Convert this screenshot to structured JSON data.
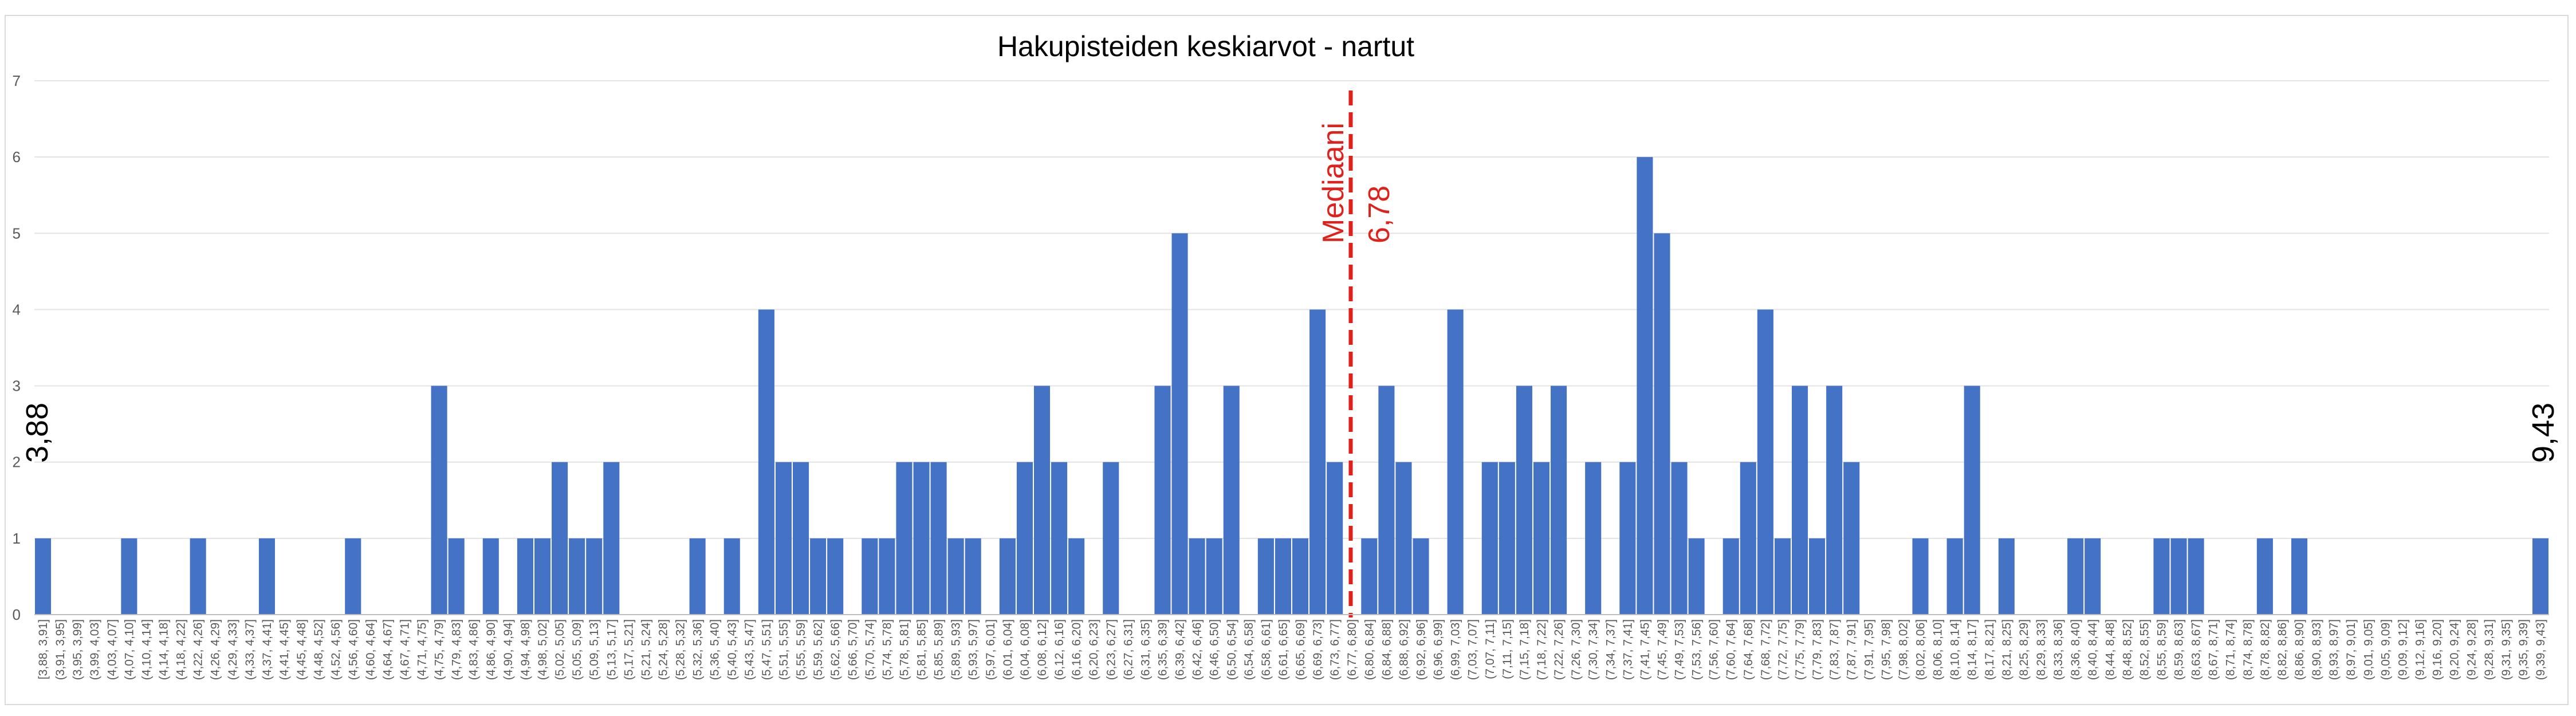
{
  "chart_data": {
    "type": "bar",
    "title": "Hakupisteiden keskiarvot - nartut",
    "xlabel": "",
    "ylabel": "",
    "ylim": [
      0,
      7
    ],
    "yticks": [
      "0",
      "1",
      "2",
      "3",
      "4",
      "5",
      "6",
      "7"
    ],
    "grid": true,
    "legend": "none",
    "bar_color": "#4472c4",
    "categories": [
      "[3,88, 3,91]",
      "(3,91, 3,95]",
      "(3,95, 3,99]",
      "(3,99, 4,03]",
      "(4,03, 4,07]",
      "(4,07, 4,10]",
      "(4,10, 4,14]",
      "(4,14, 4,18]",
      "(4,18, 4,22]",
      "(4,22, 4,26]",
      "(4,26, 4,29]",
      "(4,29, 4,33]",
      "(4,33, 4,37]",
      "(4,37, 4,41]",
      "(4,41, 4,45]",
      "(4,45, 4,48]",
      "(4,48, 4,52]",
      "(4,52, 4,56]",
      "(4,56, 4,60]",
      "(4,60, 4,64]",
      "(4,64, 4,67]",
      "(4,67, 4,71]",
      "(4,71, 4,75]",
      "(4,75, 4,79]",
      "(4,79, 4,83]",
      "(4,83, 4,86]",
      "(4,86, 4,90]",
      "(4,90, 4,94]",
      "(4,94, 4,98]",
      "(4,98, 5,02]",
      "(5,02, 5,05]",
      "(5,05, 5,09]",
      "(5,09, 5,13]",
      "(5,13, 5,17]",
      "(5,17, 5,21]",
      "(5,21, 5,24]",
      "(5,24, 5,28]",
      "(5,28, 5,32]",
      "(5,32, 5,36]",
      "(5,36, 5,40]",
      "(5,40, 5,43]",
      "(5,43, 5,47]",
      "(5,47, 5,51]",
      "(5,51, 5,55]",
      "(5,55, 5,59]",
      "(5,59, 5,62]",
      "(5,62, 5,66]",
      "(5,66, 5,70]",
      "(5,70, 5,74]",
      "(5,74, 5,78]",
      "(5,78, 5,81]",
      "(5,81, 5,85]",
      "(5,85, 5,89]",
      "(5,89, 5,93]",
      "(5,93, 5,97]",
      "(5,97, 6,01]",
      "(6,01, 6,04]",
      "(6,04, 6,08]",
      "(6,08, 6,12]",
      "(6,12, 6,16]",
      "(6,16, 6,20]",
      "(6,20, 6,23]",
      "(6,23, 6,27]",
      "(6,27, 6,31]",
      "(6,31, 6,35]",
      "(6,35, 6,39]",
      "(6,39, 6,42]",
      "(6,42, 6,46]",
      "(6,46, 6,50]",
      "(6,50, 6,54]",
      "(6,54, 6,58]",
      "(6,58, 6,61]",
      "(6,61, 6,65]",
      "(6,65, 6,69]",
      "(6,69, 6,73]",
      "(6,73, 6,77]",
      "(6,77, 6,80]",
      "(6,80, 6,84]",
      "(6,84, 6,88]",
      "(6,88, 6,92]",
      "(6,92, 6,96]",
      "(6,96, 6,99]",
      "(6,99, 7,03]",
      "(7,03, 7,07]",
      "(7,07, 7,11]",
      "(7,11, 7,15]",
      "(7,15, 7,18]",
      "(7,18, 7,22]",
      "(7,22, 7,26]",
      "(7,26, 7,30]",
      "(7,30, 7,34]",
      "(7,34, 7,37]",
      "(7,37, 7,41]",
      "(7,41, 7,45]",
      "(7,45, 7,49]",
      "(7,49, 7,53]",
      "(7,53, 7,56]",
      "(7,56, 7,60]",
      "(7,60, 7,64]",
      "(7,64, 7,68]",
      "(7,68, 7,72]",
      "(7,72, 7,75]",
      "(7,75, 7,79]",
      "(7,79, 7,83]",
      "(7,83, 7,87]",
      "(7,87, 7,91]",
      "(7,91, 7,95]",
      "(7,95, 7,98]",
      "(7,98, 8,02]",
      "(8,02, 8,06]",
      "(8,06, 8,10]",
      "(8,10, 8,14]",
      "(8,14, 8,17]",
      "(8,17, 8,21]",
      "(8,21, 8,25]",
      "(8,25, 8,29]",
      "(8,29, 8,33]",
      "(8,33, 8,36]",
      "(8,36, 8,40]",
      "(8,40, 8,44]",
      "(8,44, 8,48]",
      "(8,48, 8,52]",
      "(8,52, 8,55]",
      "(8,55, 8,59]",
      "(8,59, 8,63]",
      "(8,63, 8,67]",
      "(8,67, 8,71]",
      "(8,71, 8,74]",
      "(8,74, 8,78]",
      "(8,78, 8,82]",
      "(8,82, 8,86]",
      "(8,86, 8,90]",
      "(8,90, 8,93]",
      "(8,93, 8,97]",
      "(8,97, 9,01]",
      "(9,01, 9,05]",
      "(9,05, 9,09]",
      "(9,09, 9,12]",
      "(9,12, 9,16]",
      "(9,16, 9,20]",
      "(9,20, 9,24]",
      "(9,24, 9,28]",
      "(9,28, 9,31]",
      "(9,31, 9,35]",
      "(9,35, 9,39]",
      "(9,39, 9,43]"
    ],
    "values": [
      1,
      0,
      0,
      0,
      0,
      1,
      0,
      0,
      0,
      1,
      0,
      0,
      0,
      1,
      0,
      0,
      0,
      0,
      1,
      0,
      0,
      0,
      0,
      3,
      1,
      0,
      1,
      0,
      1,
      1,
      2,
      1,
      1,
      2,
      0,
      0,
      0,
      0,
      1,
      0,
      1,
      0,
      4,
      2,
      2,
      1,
      1,
      0,
      1,
      1,
      2,
      2,
      2,
      1,
      1,
      0,
      1,
      2,
      3,
      2,
      1,
      0,
      2,
      0,
      0,
      3,
      5,
      1,
      1,
      3,
      0,
      1,
      1,
      1,
      4,
      2,
      0,
      1,
      3,
      2,
      1,
      0,
      4,
      0,
      2,
      2,
      3,
      2,
      3,
      0,
      2,
      0,
      2,
      6,
      5,
      2,
      1,
      0,
      1,
      2,
      4,
      1,
      3,
      1,
      3,
      2,
      0,
      0,
      0,
      1,
      0,
      1,
      3,
      0,
      1,
      0,
      0,
      0,
      1,
      1,
      0,
      0,
      0,
      1,
      1,
      1,
      0,
      0,
      0,
      1,
      0,
      1,
      0,
      0,
      0,
      0,
      0,
      0,
      0,
      0,
      0,
      0,
      0,
      0,
      0,
      1
    ],
    "median": {
      "label_line1": "Mediaani",
      "label_line2": "6,78",
      "color": "#e0201b"
    },
    "min_label": "3,88",
    "max_label": "9,43"
  }
}
